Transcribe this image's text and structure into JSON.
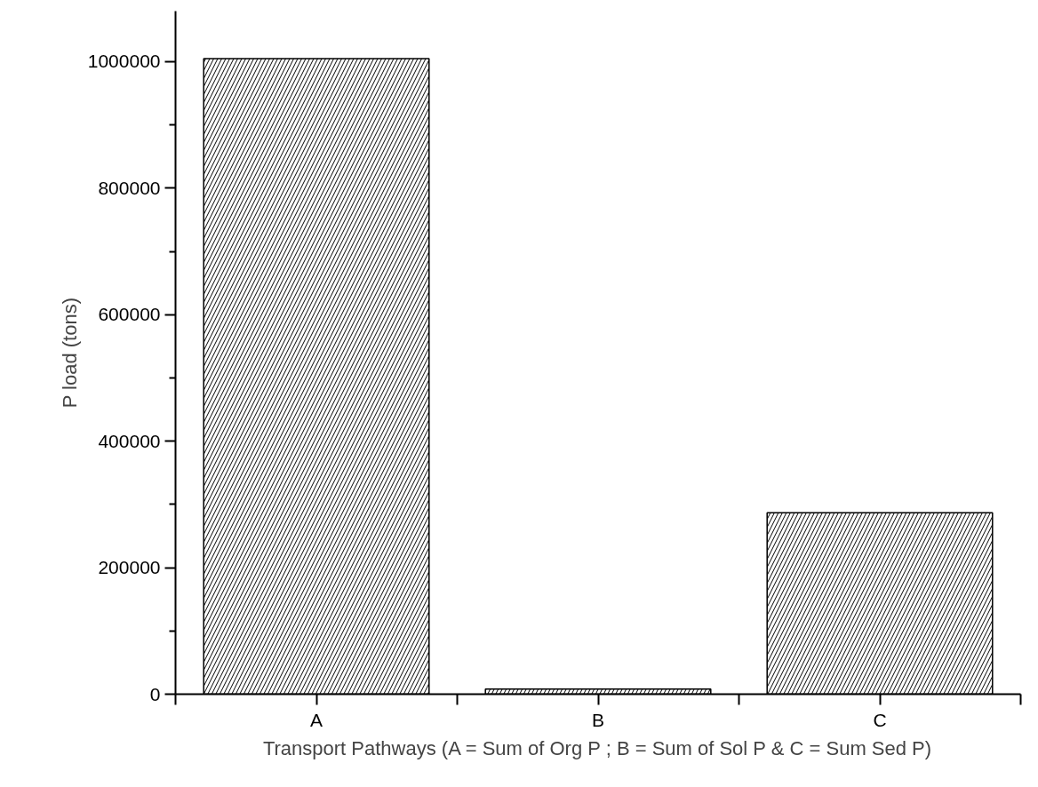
{
  "chart_data": {
    "type": "bar",
    "xlabel": "Transport Pathways (A = Sum of Org P ; B = Sum of Sol P & C = Sum Sed P)",
    "ylabel": "P load (tons)",
    "categories": [
      "A",
      "B",
      "C"
    ],
    "values": [
      1005000,
      8000,
      287000
    ],
    "color": "#ffffff",
    "ylim": [
      0,
      1080000
    ],
    "yticks": [
      0,
      {
        "value": 100000,
        "label": null
      },
      200000,
      {
        "value": 300000,
        "label": null
      },
      400000,
      {
        "value": 500000,
        "label": null
      },
      600000,
      {
        "value": 700000,
        "label": null
      },
      800000,
      {
        "value": 900000,
        "label": null
      },
      1000000
    ],
    "grid": false
  }
}
